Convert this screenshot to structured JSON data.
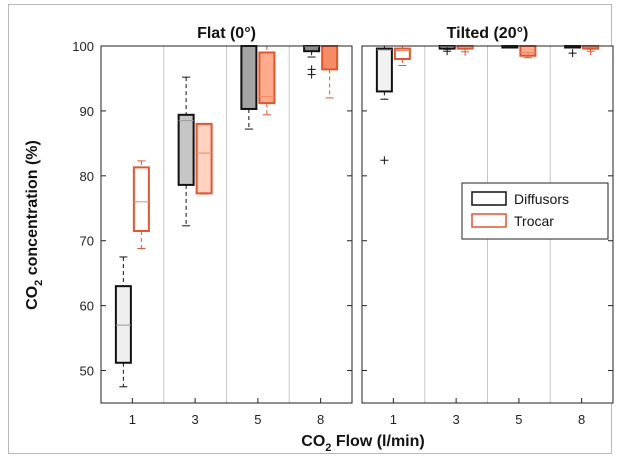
{
  "chart_data": {
    "type": "box",
    "ylabel": {
      "main": "CO",
      "sub": "2",
      "rest": " concentration (%)"
    },
    "xlabel": {
      "main": "CO",
      "sub": "2",
      "rest": " Flow (l/min)"
    },
    "ylim": [
      45,
      100
    ],
    "yticks": [
      50,
      60,
      70,
      80,
      90,
      100
    ],
    "categories": [
      "1",
      "3",
      "5",
      "8"
    ],
    "legend": {
      "position": "right",
      "items": [
        {
          "name": "Diffusors",
          "color": "#111111"
        },
        {
          "name": "Trocar",
          "color": "#e8532a"
        }
      ]
    },
    "colors": {
      "diffusors": "#111111",
      "trocar": "#e8532a",
      "grid": "#c8c8c8",
      "median": "#999999",
      "trocar_median": "#f08a60"
    },
    "panels": [
      {
        "title": "Flat (0°)",
        "groups": [
          {
            "category": "1",
            "diffusors": {
              "whisker_low": 47.5,
              "q1": 51.2,
              "median": 57.0,
              "q3": 63.0,
              "whisker_high": 67.5,
              "fill": "#efefef",
              "outliers": []
            },
            "trocar": {
              "whisker_low": 68.8,
              "q1": 71.5,
              "median": 76.0,
              "q3": 81.3,
              "whisker_high": 82.3,
              "fill": "#ffffff",
              "outliers": []
            }
          },
          {
            "category": "3",
            "diffusors": {
              "whisker_low": 72.3,
              "q1": 78.6,
              "median": 88.5,
              "q3": 89.4,
              "whisker_high": 95.2,
              "fill": "#c6c6c6",
              "outliers": []
            },
            "trocar": {
              "whisker_low": 77.2,
              "q1": 77.3,
              "median": 83.5,
              "q3": 88.0,
              "whisker_high": 88.0,
              "fill": "#ffd2c2",
              "outliers": []
            }
          },
          {
            "category": "5",
            "diffusors": {
              "whisker_low": 87.2,
              "q1": 90.3,
              "median": 100.0,
              "q3": 100.0,
              "whisker_high": 100.0,
              "fill": "#a4a4a4",
              "outliers": []
            },
            "trocar": {
              "whisker_low": 89.4,
              "q1": 91.2,
              "median": 92.2,
              "q3": 99.0,
              "whisker_high": 100.0,
              "fill": "#ffab8c",
              "outliers": []
            }
          },
          {
            "category": "8",
            "diffusors": {
              "whisker_low": 98.3,
              "q1": 99.2,
              "median": 99.9,
              "q3": 100.0,
              "whisker_high": 100.0,
              "fill": "#8c8c8c",
              "outliers": [
                96.4,
                95.6
              ]
            },
            "trocar": {
              "whisker_low": 92.0,
              "q1": 96.4,
              "median": 100.0,
              "q3": 100.0,
              "whisker_high": 100.0,
              "fill": "#f58c63",
              "outliers": []
            }
          }
        ]
      },
      {
        "title": "Tilted (20°)",
        "groups": [
          {
            "category": "1",
            "diffusors": {
              "whisker_low": 91.8,
              "q1": 93.0,
              "median": 99.4,
              "q3": 99.6,
              "whisker_high": 100.0,
              "fill": "#f2f2f2",
              "outliers": [
                82.4
              ]
            },
            "trocar": {
              "whisker_low": 97.0,
              "q1": 98.0,
              "median": 99.3,
              "q3": 99.6,
              "whisker_high": 100.0,
              "fill": "#ffffff",
              "outliers": []
            }
          },
          {
            "category": "3",
            "diffusors": {
              "whisker_low": 99.5,
              "q1": 99.6,
              "median": 99.9,
              "q3": 100.0,
              "whisker_high": 100.0,
              "fill": "#c6c6c6",
              "outliers": [
                99.2
              ]
            },
            "trocar": {
              "whisker_low": 99.5,
              "q1": 99.6,
              "median": 99.9,
              "q3": 100.0,
              "whisker_high": 100.0,
              "fill": "#ffd2c2",
              "outliers": [
                99.1
              ]
            }
          },
          {
            "category": "5",
            "diffusors": {
              "whisker_low": 99.8,
              "q1": 99.9,
              "median": 100.0,
              "q3": 100.0,
              "whisker_high": 100.0,
              "fill": "#a4a4a4",
              "outliers": []
            },
            "trocar": {
              "whisker_low": 98.2,
              "q1": 98.5,
              "median": 99.0,
              "q3": 100.0,
              "whisker_high": 100.0,
              "fill": "#ffab8c",
              "outliers": []
            }
          },
          {
            "category": "8",
            "diffusors": {
              "whisker_low": 99.8,
              "q1": 99.9,
              "median": 100.0,
              "q3": 100.0,
              "whisker_high": 100.0,
              "fill": "#8c8c8c",
              "outliers": [
                98.9
              ]
            },
            "trocar": {
              "whisker_low": 99.5,
              "q1": 99.6,
              "median": 99.9,
              "q3": 100.0,
              "whisker_high": 100.0,
              "fill": "#f58c63",
              "outliers": [
                99.2
              ]
            }
          }
        ]
      }
    ]
  }
}
